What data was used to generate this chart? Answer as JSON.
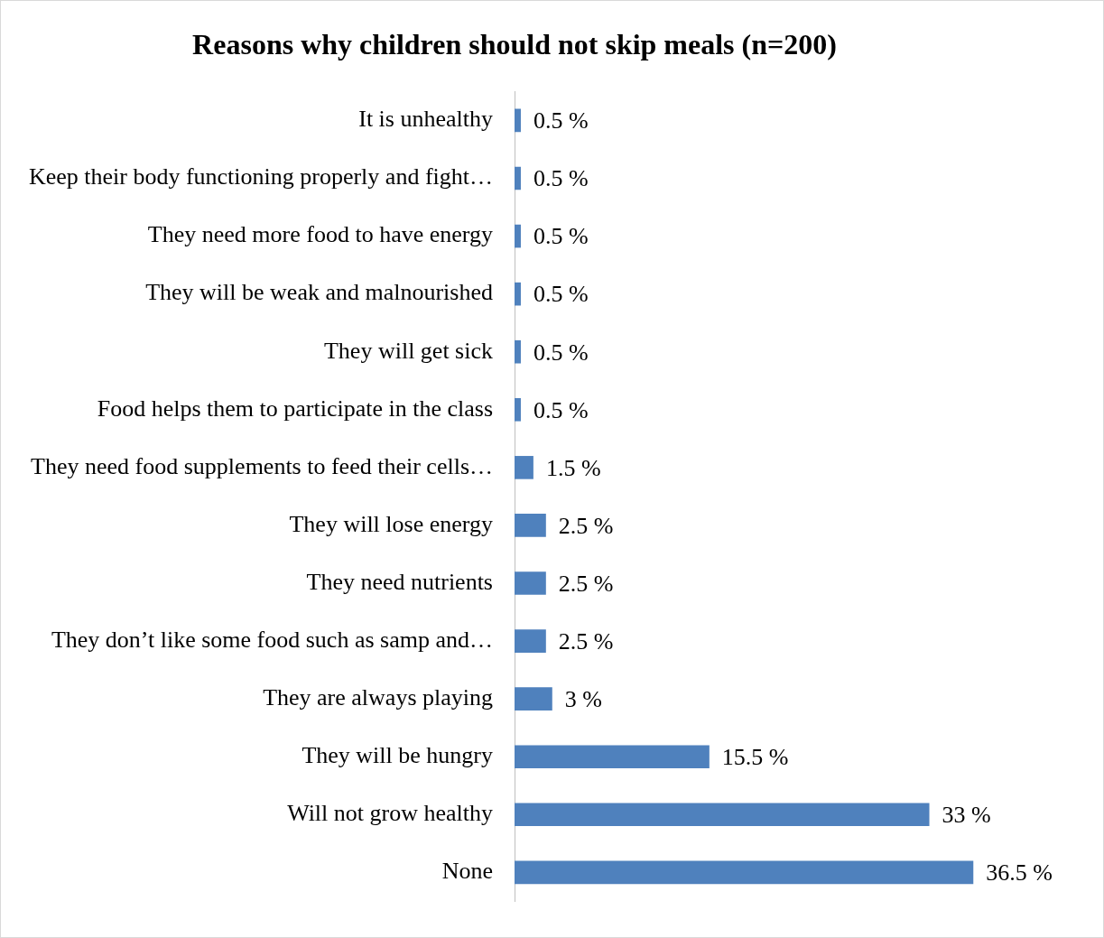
{
  "chart_data": {
    "type": "bar",
    "orientation": "horizontal",
    "title": "Reasons why children should not skip meals (n=200)",
    "categories": [
      "It is unhealthy",
      "Keep their body functioning properly and fight…",
      "They need more food to have energy",
      "They will be weak and malnourished",
      "They will get sick",
      "Food helps them to participate in the class",
      "They need food supplements to feed their cells…",
      "They will lose energy",
      "They need nutrients",
      "They don’t like some food such as samp and…",
      "They are always playing",
      "They will be hungry",
      "Will not grow healthy",
      "None"
    ],
    "values": [
      0.5,
      0.5,
      0.5,
      0.5,
      0.5,
      0.5,
      1.5,
      2.5,
      2.5,
      2.5,
      3,
      15.5,
      33,
      36.5
    ],
    "value_labels": [
      "0.5 %",
      "0.5 %",
      "0.5 %",
      "0.5 %",
      "0.5 %",
      "0.5 %",
      "1.5 %",
      "2.5 %",
      "2.5 %",
      "2.5 %",
      "3 %",
      "15.5 %",
      "33 %",
      "36.5 %"
    ],
    "color": "#4f81bd",
    "legend": false,
    "tick_labels": "y"
  }
}
